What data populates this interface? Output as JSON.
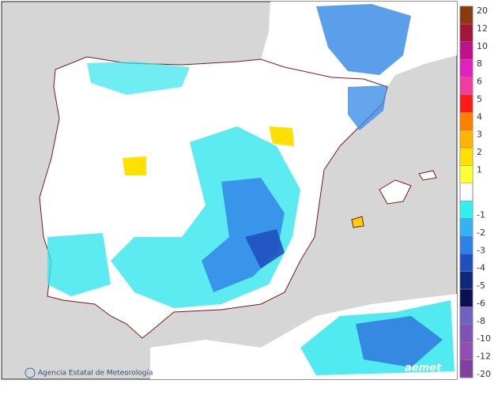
{
  "legend": {
    "labels": [
      20,
      12,
      10,
      8,
      6,
      5,
      4,
      3,
      2,
      1,
      -1,
      -2,
      -3,
      -4,
      -5,
      -6,
      -8,
      -10,
      -12,
      -20
    ],
    "colors": [
      "#8b3a0e",
      "#a3163c",
      "#c0108a",
      "#e020c0",
      "#f23ca0",
      "#ff1a1a",
      "#ff7f00",
      "#ffb400",
      "#ffe000",
      "#ffff33",
      "#33f0f0",
      "#33b4f0",
      "#2f80e8",
      "#2050c0",
      "#10287a",
      "#0a1050",
      "#7060c0",
      "#7f52b4",
      "#9050b0",
      "#8040a0"
    ]
  },
  "credit": "Agencia Estatal de Meteorología",
  "logo": "aemet"
}
